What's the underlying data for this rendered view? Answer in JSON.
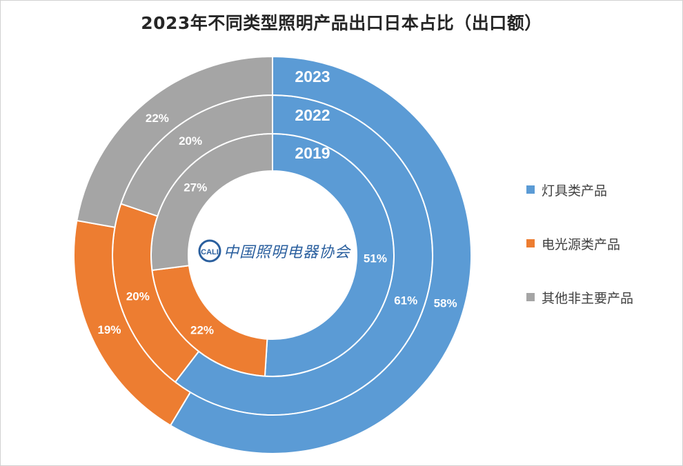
{
  "chart_data": {
    "type": "pie",
    "subtype": "multi-level donut",
    "title": "2023年不同类型照明产品出口日本占比（出口额）",
    "categories": [
      "灯具类产品",
      "电光源类产品",
      "其他非主要产品"
    ],
    "series": [
      {
        "name": "2019",
        "values": [
          51,
          22,
          27
        ],
        "labels": [
          "51%",
          "22%",
          "27%"
        ]
      },
      {
        "name": "2022",
        "values": [
          61,
          20,
          20
        ],
        "labels": [
          "61%",
          "20%",
          "20%"
        ]
      },
      {
        "name": "2023",
        "values": [
          58,
          19,
          22
        ],
        "labels": [
          "58%",
          "19%",
          "22%"
        ]
      }
    ],
    "colors": [
      "#5b9bd5",
      "#ed7d31",
      "#a5a5a5"
    ],
    "legend_position": "right"
  },
  "logo": {
    "mark_text": "CALI",
    "text": "中国照明电器协会"
  }
}
